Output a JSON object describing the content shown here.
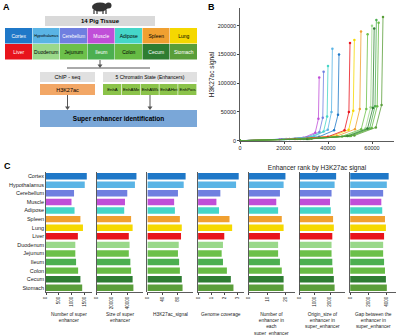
{
  "diagram": {
    "panel_label": "A",
    "source": "14 Pig Tissue",
    "tissues": [
      {
        "label": "Cortex",
        "color": "#1f78c8"
      },
      {
        "label": "Hypothalamus",
        "color": "#5ab4e5"
      },
      {
        "label": "Cerebellum",
        "color": "#6f7fe0"
      },
      {
        "label": "Muscle",
        "color": "#c04fd8"
      },
      {
        "label": "Adipose",
        "color": "#45d6c8"
      },
      {
        "label": "Spleen",
        "color": "#f0a030"
      },
      {
        "label": "Lung",
        "color": "#f5d800"
      },
      {
        "label": "Liver",
        "color": "#e8141c"
      },
      {
        "label": "Duodenum",
        "color": "#9ad88a"
      },
      {
        "label": "Jejunum",
        "color": "#6cc04a"
      },
      {
        "label": "Ileum",
        "color": "#4caf50"
      },
      {
        "label": "Colon",
        "color": "#66bb44"
      },
      {
        "label": "Cecum",
        "color": "#2e7d32"
      },
      {
        "label": "Stomach",
        "color": "#5a9e3a"
      }
    ],
    "assay": {
      "method": "ChIP - seq",
      "mark": "H3K27ac"
    },
    "chromatin": {
      "title": "5 Chromatin State (Enhancers)",
      "states": [
        "EnhA",
        "EnhAMe",
        "EnhAWk",
        "EnhAHet",
        "EnhPois"
      ]
    },
    "result": "Super enhancer identification"
  },
  "chart_data": [
    {
      "type": "scatter",
      "annotations": [
        "B"
      ],
      "xlabel": "Enhancer rank by H3K27ac signal",
      "ylabel": "H3K27ac signal",
      "marker": "circle",
      "line_style": "solid",
      "grid": false,
      "xlim": [
        0,
        70000
      ],
      "xticks": [
        0,
        20000,
        40000,
        60000
      ],
      "ylim": [
        0,
        230000
      ],
      "yticks": [
        0,
        50000,
        100000,
        150000,
        200000
      ],
      "series": [
        {
          "color": "#1f78c8",
          "x": [
            0,
            22500,
            36000,
            42750,
            44550,
            45000
          ],
          "values": [
            0,
            3000,
            7000,
            18000,
            45000,
            150000
          ]
        },
        {
          "color": "#5ab4e5",
          "x": [
            0,
            21000,
            33600,
            39900,
            41580,
            42000
          ],
          "values": [
            0,
            3000,
            7500,
            19000,
            50000,
            160000
          ]
        },
        {
          "color": "#6f7fe0",
          "x": [
            0,
            19000,
            30400,
            36100,
            37620,
            38000
          ],
          "values": [
            0,
            2500,
            6000,
            15000,
            40000,
            120000
          ]
        },
        {
          "color": "#c04fd8",
          "x": [
            0,
            18000,
            28800,
            34200,
            35640,
            36000
          ],
          "values": [
            0,
            2000,
            5000,
            14000,
            38000,
            110000
          ]
        },
        {
          "color": "#45d6c8",
          "x": [
            0,
            20000,
            32000,
            38000,
            39600,
            40000
          ],
          "values": [
            0,
            2500,
            6500,
            16000,
            42000,
            130000
          ]
        },
        {
          "color": "#f0a030",
          "x": [
            0,
            27500,
            44000,
            52250,
            54450,
            55000
          ],
          "values": [
            0,
            3000,
            8000,
            20000,
            55000,
            190000
          ]
        },
        {
          "color": "#f5d800",
          "x": [
            0,
            26000,
            41600,
            49400,
            51480,
            52000
          ],
          "values": [
            0,
            3000,
            7500,
            19000,
            52000,
            175000
          ]
        },
        {
          "color": "#e8141c",
          "x": [
            0,
            25000,
            40000,
            47500,
            49500,
            50000
          ],
          "values": [
            0,
            3000,
            7000,
            18000,
            50000,
            170000
          ]
        },
        {
          "color": "#9ad88a",
          "x": [
            0,
            30000,
            48000,
            57000,
            59400,
            60000
          ],
          "values": [
            0,
            3000,
            8000,
            21000,
            58000,
            200000
          ]
        },
        {
          "color": "#6cc04a",
          "x": [
            0,
            29000,
            46400,
            55100,
            57420,
            58000
          ],
          "values": [
            0,
            3000,
            7500,
            20000,
            55000,
            185000
          ]
        },
        {
          "color": "#4caf50",
          "x": [
            0,
            31000,
            49600,
            58900,
            61380,
            62000
          ],
          "values": [
            0,
            3000,
            8000,
            21000,
            60000,
            210000
          ]
        },
        {
          "color": "#66bb44",
          "x": [
            0,
            31500,
            50400,
            59850,
            62370,
            63000
          ],
          "values": [
            0,
            3000,
            8000,
            22000,
            60000,
            205000
          ]
        },
        {
          "color": "#2e7d32",
          "x": [
            0,
            30500,
            48800,
            57950,
            60390,
            61000
          ],
          "values": [
            0,
            3000,
            8000,
            21000,
            57000,
            195000
          ]
        },
        {
          "color": "#5a9e3a",
          "x": [
            0,
            32500,
            52000,
            61750,
            64350,
            65000
          ],
          "values": [
            0,
            3500,
            9000,
            23000,
            62000,
            215000
          ]
        }
      ]
    },
    {
      "type": "bar",
      "orientation": "horizontal",
      "annotations": [
        "C"
      ],
      "xlabel": "Number of super enhancer",
      "categories": [
        "Cortex",
        "Hypothalamus",
        "Cerebellum",
        "Muscle",
        "Adipose",
        "Spleen",
        "Lung",
        "Liver",
        "Duodenum",
        "Jejunum",
        "Ileum",
        "Colon",
        "Cecum",
        "Stomach"
      ],
      "colors": [
        "#1f78c8",
        "#5ab4e5",
        "#6f7fe0",
        "#c04fd8",
        "#45d6c8",
        "#f0a030",
        "#f5d800",
        "#e8141c",
        "#9ad88a",
        "#6cc04a",
        "#4caf50",
        "#66bb44",
        "#2e7d32",
        "#5a9e3a"
      ],
      "values": [
        1600,
        1520,
        1100,
        1000,
        1120,
        1350,
        1450,
        1250,
        1150,
        1150,
        1180,
        1260,
        1350,
        1420
      ],
      "xlim": [
        0,
        1800
      ],
      "xticks": [
        0,
        500,
        1000,
        1500
      ]
    },
    {
      "type": "bar",
      "orientation": "horizontal",
      "tick_labels": "x",
      "xlabel": "Size of super enhancer",
      "categories": [
        "Cortex",
        "Hypothalamus",
        "Cerebellum",
        "Muscle",
        "Adipose",
        "Spleen",
        "Lung",
        "Liver",
        "Duodenum",
        "Jejunum",
        "Ileum",
        "Colon",
        "Cecum",
        "Stomach"
      ],
      "colors": [
        "#1f78c8",
        "#5ab4e5",
        "#6f7fe0",
        "#c04fd8",
        "#45d6c8",
        "#f0a030",
        "#f5d800",
        "#e8141c",
        "#9ad88a",
        "#6cc04a",
        "#4caf50",
        "#66bb44",
        "#2e7d32",
        "#5a9e3a"
      ],
      "values": [
        52000,
        50000,
        40000,
        37000,
        36000,
        45000,
        47000,
        42000,
        43000,
        42000,
        44000,
        45000,
        47000,
        48000
      ],
      "xlim": [
        0,
        60000
      ],
      "xticks": [
        0,
        20000,
        40000
      ]
    },
    {
      "type": "bar",
      "orientation": "horizontal",
      "tick_labels": "x",
      "xlabel": "H3K27ac_signal",
      "categories": [
        "Cortex",
        "Hypothalamus",
        "Cerebellum",
        "Muscle",
        "Adipose",
        "Spleen",
        "Lung",
        "Liver",
        "Duodenum",
        "Jejunum",
        "Ileum",
        "Colon",
        "Cecum",
        "Stomach"
      ],
      "colors": [
        "#1f78c8",
        "#5ab4e5",
        "#6f7fe0",
        "#c04fd8",
        "#45d6c8",
        "#f0a030",
        "#f5d800",
        "#e8141c",
        "#9ad88a",
        "#6cc04a",
        "#4caf50",
        "#66bb44",
        "#2e7d32",
        "#5a9e3a"
      ],
      "values": [
        100,
        95,
        80,
        70,
        72,
        85,
        90,
        88,
        82,
        80,
        83,
        85,
        90,
        92
      ],
      "xlim": [
        0,
        120
      ],
      "xticks": [
        0,
        40,
        80
      ]
    },
    {
      "type": "bar",
      "orientation": "horizontal",
      "tick_labels": "x",
      "xlabel": "Genome coverage",
      "categories": [
        "Cortex",
        "Hypothalamus",
        "Cerebellum",
        "Muscle",
        "Adipose",
        "Spleen",
        "Lung",
        "Liver",
        "Duodenum",
        "Jejunum",
        "Ileum",
        "Colon",
        "Cecum",
        "Stomach"
      ],
      "colors": [
        "#1f78c8",
        "#5ab4e5",
        "#6f7fe0",
        "#c04fd8",
        "#45d6c8",
        "#f0a030",
        "#f5d800",
        "#e8141c",
        "#9ad88a",
        "#6cc04a",
        "#4caf50",
        "#66bb44",
        "#2e7d32",
        "#5a9e3a"
      ],
      "values": [
        3.1,
        2.9,
        1.7,
        1.4,
        1.6,
        2.4,
        2.6,
        2.0,
        1.9,
        1.8,
        1.9,
        2.2,
        2.5,
        2.7
      ],
      "xlim": [
        0,
        3.5
      ],
      "xticks": [
        0,
        1,
        2,
        3
      ]
    },
    {
      "type": "bar",
      "orientation": "horizontal",
      "tick_labels": "x",
      "xlabel": "Number of enhancer in each super_enhancer",
      "categories": [
        "Cortex",
        "Hypothalamus",
        "Cerebellum",
        "Muscle",
        "Adipose",
        "Spleen",
        "Lung",
        "Liver",
        "Duodenum",
        "Jejunum",
        "Ileum",
        "Colon",
        "Cecum",
        "Stomach"
      ],
      "colors": [
        "#1f78c8",
        "#5ab4e5",
        "#6f7fe0",
        "#c04fd8",
        "#45d6c8",
        "#f0a030",
        "#f5d800",
        "#e8141c",
        "#9ad88a",
        "#6cc04a",
        "#4caf50",
        "#66bb44",
        "#2e7d32",
        "#5a9e3a"
      ],
      "values": [
        20,
        19,
        17,
        15,
        16,
        18,
        19,
        17,
        16,
        16,
        17,
        18,
        19,
        19
      ],
      "xlim": [
        0,
        25
      ],
      "xticks": [
        0,
        10,
        20
      ]
    },
    {
      "type": "bar",
      "orientation": "horizontal",
      "tick_labels": "x",
      "xlabel": "Origin_size of enhancer in super_enhancer",
      "categories": [
        "Cortex",
        "Hypothalamus",
        "Cerebellum",
        "Muscle",
        "Adipose",
        "Spleen",
        "Lung",
        "Liver",
        "Duodenum",
        "Jejunum",
        "Ileum",
        "Colon",
        "Cecum",
        "Stomach"
      ],
      "colors": [
        "#1f78c8",
        "#5ab4e5",
        "#6f7fe0",
        "#c04fd8",
        "#45d6c8",
        "#f0a030",
        "#f5d800",
        "#e8141c",
        "#9ad88a",
        "#6cc04a",
        "#4caf50",
        "#66bb44",
        "#2e7d32",
        "#5a9e3a"
      ],
      "values": [
        2400,
        2300,
        2100,
        2000,
        2050,
        2200,
        2250,
        2150,
        2100,
        2100,
        2150,
        2200,
        2250,
        2300
      ],
      "xlim": [
        0,
        3000
      ],
      "xticks": [
        0,
        1000,
        2000
      ]
    },
    {
      "type": "bar",
      "orientation": "horizontal",
      "tick_labels": "x",
      "xlabel": "Gap between the enhancer in super_enhancer",
      "categories": [
        "Cortex",
        "Hypothalamus",
        "Cerebellum",
        "Muscle",
        "Adipose",
        "Spleen",
        "Lung",
        "Liver",
        "Duodenum",
        "Jejunum",
        "Ileum",
        "Colon",
        "Cecum",
        "Stomach"
      ],
      "colors": [
        "#1f78c8",
        "#5ab4e5",
        "#6f7fe0",
        "#c04fd8",
        "#45d6c8",
        "#f0a030",
        "#f5d800",
        "#e8141c",
        "#9ad88a",
        "#6cc04a",
        "#4caf50",
        "#66bb44",
        "#2e7d32",
        "#5a9e3a"
      ],
      "values": [
        4200,
        4000,
        3600,
        3400,
        3500,
        3800,
        3900,
        3700,
        3600,
        3600,
        3700,
        3800,
        3900,
        4000
      ],
      "xlim": [
        0,
        5000
      ],
      "xticks": [
        0,
        2000,
        4000
      ]
    }
  ]
}
